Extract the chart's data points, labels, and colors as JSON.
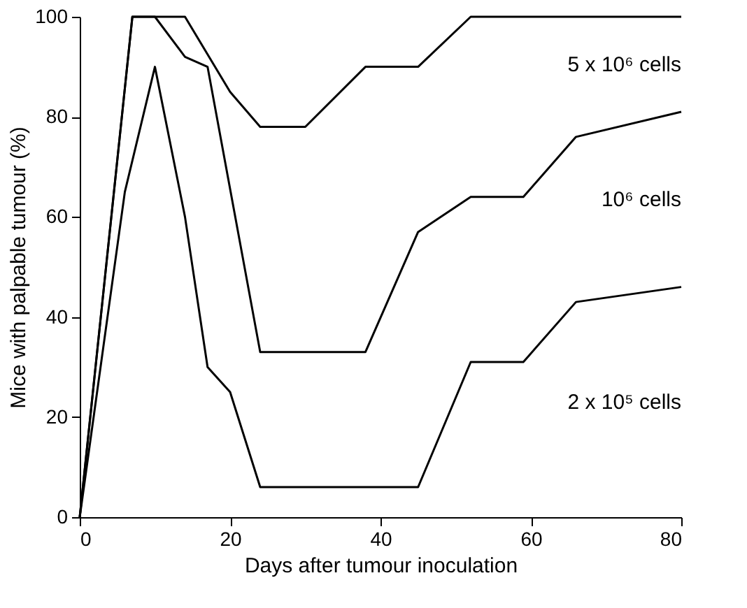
{
  "chart_data": {
    "type": "line",
    "xlabel": "Days after tumour inoculation",
    "ylabel": "Mice with palpable tumour (%)",
    "xlim": [
      0,
      80
    ],
    "ylim": [
      0,
      100
    ],
    "xticks": [
      0,
      20,
      40,
      60,
      80
    ],
    "yticks": [
      0,
      20,
      40,
      60,
      80,
      100
    ],
    "grid": false,
    "legend": false,
    "marker": "none",
    "line_style": "solid",
    "series": [
      {
        "name": "5 x 10⁶ cells",
        "color": "#000000",
        "x": [
          0,
          7,
          14,
          20,
          24,
          30,
          38,
          45,
          52,
          80
        ],
        "values": [
          0,
          100,
          100,
          85,
          78,
          78,
          90,
          90,
          100,
          100
        ]
      },
      {
        "name": "10⁶ cells",
        "color": "#000000",
        "x": [
          0,
          7,
          10,
          14,
          17,
          24,
          38,
          45,
          52,
          59,
          66,
          80
        ],
        "values": [
          0,
          100,
          100,
          92,
          90,
          33,
          33,
          57,
          64,
          64,
          76,
          81
        ]
      },
      {
        "name": "2 x 10⁵ cells",
        "color": "#000000",
        "x": [
          0,
          6,
          10,
          14,
          17,
          20,
          24,
          45,
          52,
          59,
          66,
          80
        ],
        "values": [
          0,
          65,
          90,
          60,
          30,
          25,
          6,
          6,
          31,
          31,
          43,
          46
        ]
      }
    ]
  }
}
